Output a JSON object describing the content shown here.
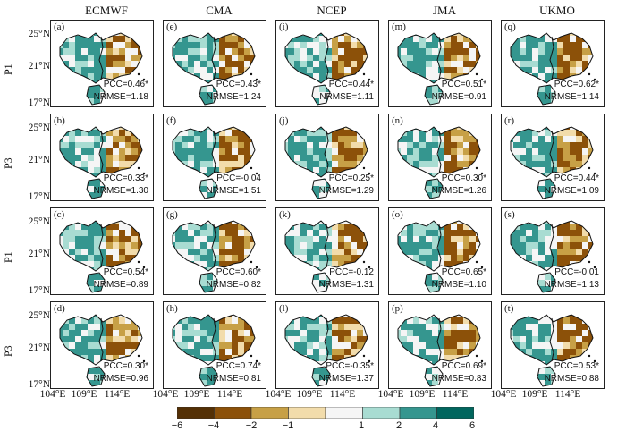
{
  "columns": [
    "ECMWF",
    "CMA",
    "NCEP",
    "JMA",
    "UKMO"
  ],
  "rows": [
    "P1",
    "P3",
    "P1",
    "P3"
  ],
  "lat_labels": [
    "25°N",
    "21°N",
    "17°N"
  ],
  "lon_labels": [
    "104°E",
    "109°E",
    "114°E"
  ],
  "colorbar": {
    "ticks": [
      "−6",
      "−4",
      "−2",
      "−1",
      "1",
      "2",
      "4",
      "6"
    ],
    "colors": [
      "#543005",
      "#8c5109",
      "#c7a046",
      "#f2dcab",
      "#f5f5f5",
      "#a8dcd2",
      "#35968f",
      "#01665e"
    ]
  },
  "panels": [
    {
      "label": "(a)",
      "pcc": "PCC=0.46*",
      "nrmse": "NRMSE=1.18"
    },
    {
      "label": "(e)",
      "pcc": "PCC=0.43*",
      "nrmse": "NRMSE=1.24"
    },
    {
      "label": "(i)",
      "pcc": "PCC=0.44*",
      "nrmse": "NRMSE=1.11"
    },
    {
      "label": "(m)",
      "pcc": "PCC=0.51*",
      "nrmse": "NRMSE=0.91"
    },
    {
      "label": "(q)",
      "pcc": "PCC=0.62*",
      "nrmse": "NRMSE=1.14"
    },
    {
      "label": "(b)",
      "pcc": "PCC=0.33*",
      "nrmse": "NRMSE=1.30"
    },
    {
      "label": "(f)",
      "pcc": "PCC=-0.04",
      "nrmse": "NRMSE=1.51"
    },
    {
      "label": "(j)",
      "pcc": "PCC=0.25*",
      "nrmse": "NRMSE=1.29"
    },
    {
      "label": "(n)",
      "pcc": "PCC=0.30*",
      "nrmse": "NRMSE=1.26"
    },
    {
      "label": "(r)",
      "pcc": "PCC=0.44*",
      "nrmse": "NRMSE=1.09"
    },
    {
      "label": "(c)",
      "pcc": "PCC=0.54*",
      "nrmse": "NRMSE=0.89"
    },
    {
      "label": "(g)",
      "pcc": "PCC=0.60*",
      "nrmse": "NRMSE=0.82"
    },
    {
      "label": "(k)",
      "pcc": "PCC=-0.12",
      "nrmse": "NRMSE=1.31"
    },
    {
      "label": "(o)",
      "pcc": "PCC=0.65*",
      "nrmse": "NRMSE=1.10"
    },
    {
      "label": "(s)",
      "pcc": "PCC=-0.01",
      "nrmse": "NRMSE=1.13"
    },
    {
      "label": "(d)",
      "pcc": "PCC=0.30*",
      "nrmse": "NRMSE=0.96"
    },
    {
      "label": "(h)",
      "pcc": "PCC=0.74*",
      "nrmse": "NRMSE=0.81"
    },
    {
      "label": "(l)",
      "pcc": "PCC=-0.35*",
      "nrmse": "NRMSE=1.37"
    },
    {
      "label": "(p)",
      "pcc": "PCC=0.69*",
      "nrmse": "NRMSE=0.83"
    },
    {
      "label": "(t)",
      "pcc": "PCC=0.53*",
      "nrmse": "NRMSE=0.88"
    }
  ]
}
